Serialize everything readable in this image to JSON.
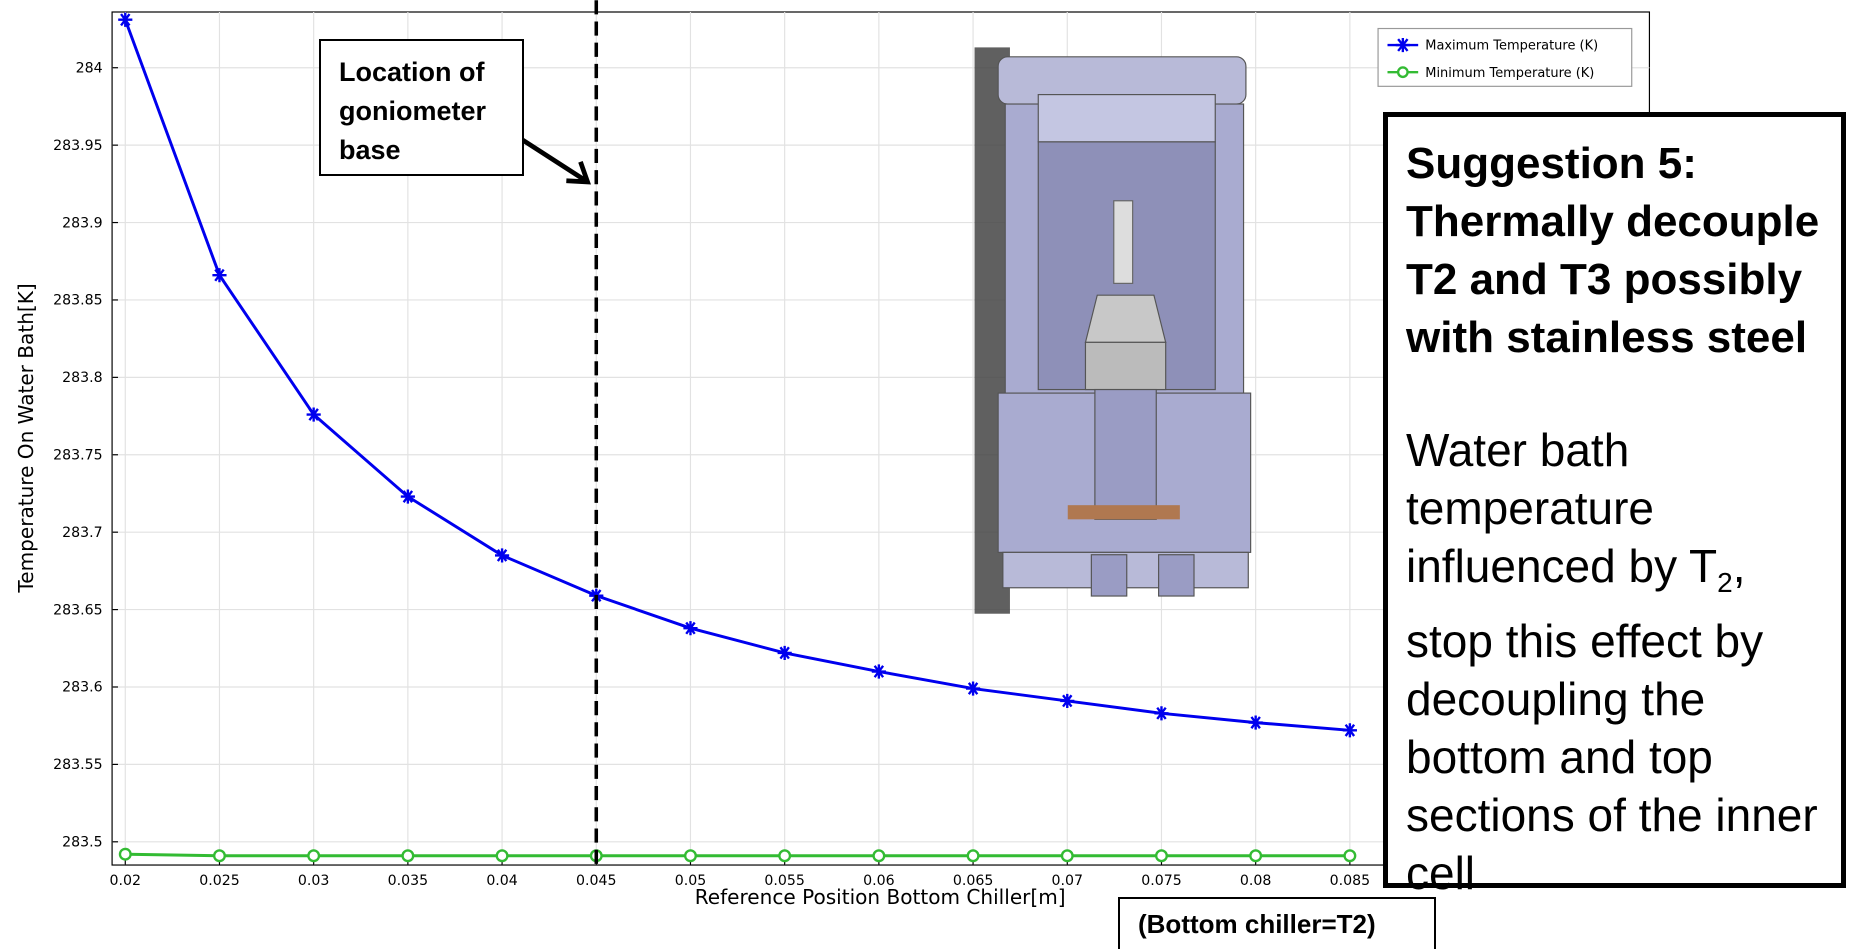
{
  "chart_data": {
    "type": "line",
    "x_label": "Reference Position Bottom Chiller[m]",
    "y_label": "Temperature On Water Bath[K]",
    "x": [
      0.02,
      0.025,
      0.03,
      0.035,
      0.04,
      0.045,
      0.05,
      0.055,
      0.06,
      0.065,
      0.07,
      0.075,
      0.08,
      0.085
    ],
    "series": [
      {
        "name": "Maximum Temperature (K)",
        "color": "#0000ee",
        "marker": "star",
        "values": [
          284.031,
          283.866,
          283.776,
          283.723,
          283.685,
          283.659,
          283.638,
          283.622,
          283.61,
          283.599,
          283.591,
          283.583,
          283.577,
          283.572
        ]
      },
      {
        "name": "Minimum Temperature (K)",
        "color": "#33bb33",
        "marker": "circle",
        "values": [
          283.492,
          283.491,
          283.491,
          283.491,
          283.491,
          283.491,
          283.491,
          283.491,
          283.491,
          283.491,
          283.491,
          283.491,
          283.491,
          283.491
        ]
      }
    ],
    "xlim": [
      0.0193,
      0.1009
    ],
    "ylim": [
      283.485,
      284.036
    ],
    "xticks": [
      0.02,
      0.025,
      0.03,
      0.035,
      0.04,
      0.045,
      0.05,
      0.055,
      0.06,
      0.065,
      0.07,
      0.075,
      0.08,
      0.085
    ],
    "yticks": [
      283.5,
      283.55,
      283.6,
      283.65,
      283.7,
      283.75,
      283.8,
      283.85,
      283.9,
      283.95,
      284
    ],
    "grid": true,
    "legend": "upper right",
    "vline": {
      "x": 0.045
    }
  },
  "annotations": {
    "goniometer": [
      "Location of",
      "goniometer",
      "base"
    ],
    "chiller": "(Bottom chiller=T2)",
    "suggestion": {
      "title": "Suggestion 5: Thermally decouple T2 and T3 possibly with stainless steel",
      "body": [
        "Water bath temperature influenced by T",
        "2",
        ", stop this effect by decoupling the bottom and top sections of the inner cell"
      ]
    }
  }
}
